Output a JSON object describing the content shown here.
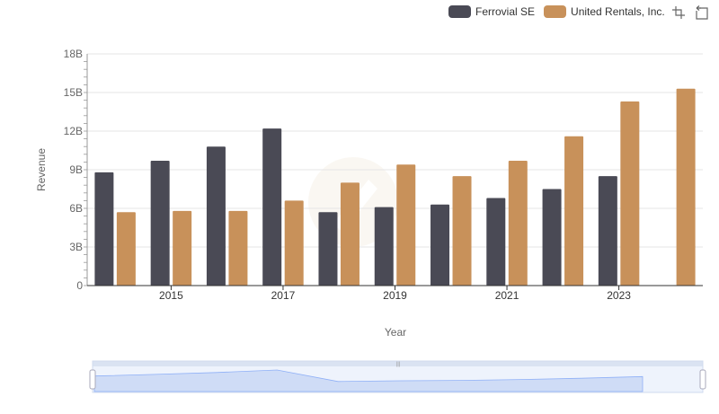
{
  "legend": {
    "items": [
      {
        "label": "Ferrovial SE",
        "color": "#4a4a55"
      },
      {
        "label": "United Rentals, Inc.",
        "color": "#c8915a"
      }
    ]
  },
  "toolbox": {
    "items": [
      {
        "name": "zoom-icon"
      },
      {
        "name": "zoom-reset-icon"
      }
    ]
  },
  "chart_data": {
    "type": "bar",
    "xlabel": "Year",
    "ylabel": "Revenue",
    "ylim": [
      0,
      18000000000
    ],
    "yticks": [
      "0",
      "3B",
      "6B",
      "9B",
      "12B",
      "15B",
      "18B"
    ],
    "categories": [
      "2014",
      "2015",
      "2016",
      "2017",
      "2018",
      "2019",
      "2020",
      "2021",
      "2022",
      "2023",
      "2024"
    ],
    "xtick_labels": [
      "2015",
      "2017",
      "2019",
      "2021",
      "2023"
    ],
    "grid": true,
    "legend_position": "top-right",
    "series": [
      {
        "name": "Ferrovial SE",
        "color": "#4a4a55",
        "values": [
          8800000000,
          9700000000,
          10800000000,
          12200000000,
          5700000000,
          6100000000,
          6300000000,
          6800000000,
          7500000000,
          8500000000,
          null
        ]
      },
      {
        "name": "United Rentals, Inc.",
        "color": "#c8915a",
        "values": [
          5700000000,
          5800000000,
          5800000000,
          6600000000,
          8000000000,
          9400000000,
          8500000000,
          9700000000,
          11600000000,
          14300000000,
          15300000000
        ]
      }
    ]
  }
}
